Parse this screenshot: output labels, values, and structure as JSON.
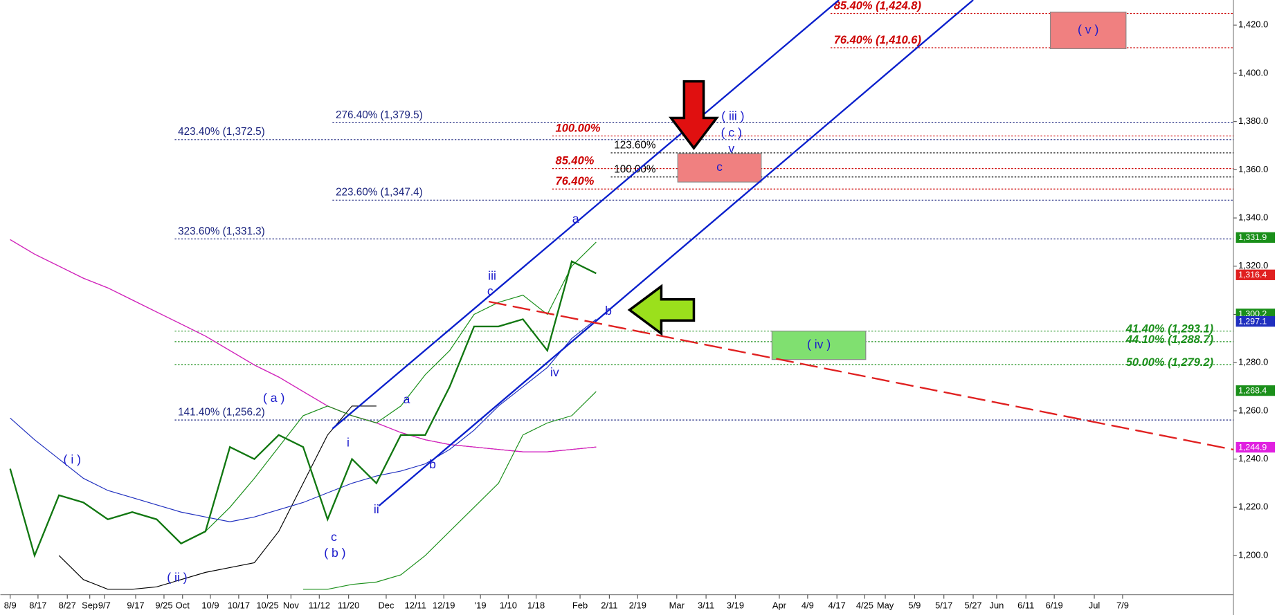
{
  "chart_data": {
    "type": "line",
    "xlim": [
      -2,
      250.5
    ],
    "ylim": [
      1184.1,
      1430.4
    ],
    "xticks": [
      {
        "value": 0,
        "label": "8/9"
      },
      {
        "value": 5.7,
        "label": "8/17"
      },
      {
        "value": 11.7,
        "label": "8/27"
      },
      {
        "value": 16.3,
        "label": "Sep"
      },
      {
        "value": 19.3,
        "label": "9/7"
      },
      {
        "value": 25.7,
        "label": "9/17"
      },
      {
        "value": 31.5,
        "label": "9/25"
      },
      {
        "value": 35.3,
        "label": "Oct"
      },
      {
        "value": 41,
        "label": "10/9"
      },
      {
        "value": 46.8,
        "label": "10/17"
      },
      {
        "value": 52.7,
        "label": "10/25"
      },
      {
        "value": 57.5,
        "label": "Nov"
      },
      {
        "value": 63.3,
        "label": "11/12"
      },
      {
        "value": 69.3,
        "label": "11/20"
      },
      {
        "value": 77,
        "label": "Dec"
      },
      {
        "value": 83,
        "label": "12/11"
      },
      {
        "value": 88.8,
        "label": "12/19"
      },
      {
        "value": 96.3,
        "label": "'19"
      },
      {
        "value": 102,
        "label": "1/10"
      },
      {
        "value": 107.7,
        "label": "1/18"
      },
      {
        "value": 116.7,
        "label": "Feb"
      },
      {
        "value": 122.7,
        "label": "2/11"
      },
      {
        "value": 128.5,
        "label": "2/19"
      },
      {
        "value": 136.5,
        "label": "Mar"
      },
      {
        "value": 142.5,
        "label": "3/11"
      },
      {
        "value": 148.5,
        "label": "3/19"
      },
      {
        "value": 157.5,
        "label": "Apr"
      },
      {
        "value": 163.3,
        "label": "4/9"
      },
      {
        "value": 169.3,
        "label": "4/17"
      },
      {
        "value": 175,
        "label": "4/25"
      },
      {
        "value": 179.2,
        "label": "May"
      },
      {
        "value": 185.2,
        "label": "5/9"
      },
      {
        "value": 191.2,
        "label": "5/17"
      },
      {
        "value": 197.2,
        "label": "5/27"
      },
      {
        "value": 202,
        "label": "Jun"
      },
      {
        "value": 208,
        "label": "6/11"
      },
      {
        "value": 213.8,
        "label": "6/19"
      },
      {
        "value": 222,
        "label": "Jul"
      },
      {
        "value": 227.8,
        "label": "7/9"
      }
    ],
    "yticks": [
      {
        "value": 1200,
        "label": "1,200.0"
      },
      {
        "value": 1220,
        "label": "1,220.0"
      },
      {
        "value": 1240,
        "label": "1,240.0"
      },
      {
        "value": 1260,
        "label": "1,260.0"
      },
      {
        "value": 1280,
        "label": "1,280.0"
      },
      {
        "value": 1300,
        "label": "1,300.0"
      },
      {
        "value": 1320,
        "label": "1,320.0"
      },
      {
        "value": 1340,
        "label": "1,340.0"
      },
      {
        "value": 1360,
        "label": "1,360.0"
      },
      {
        "value": 1380,
        "label": "1,380.0"
      },
      {
        "value": 1400,
        "label": "1,400.0"
      },
      {
        "value": 1420,
        "label": "1,420.0"
      }
    ],
    "x": [
      0,
      5,
      10,
      15,
      20,
      25,
      30,
      35,
      40,
      45,
      50,
      55,
      60,
      65,
      70,
      75,
      80,
      85,
      90,
      95,
      100,
      105,
      110,
      115,
      120
    ],
    "series": [
      {
        "color": "#c00000",
        "values": [
          1331,
          1325,
          1320,
          1315,
          1311,
          1306,
          1301,
          1296,
          1291,
          1285,
          1279,
          1274,
          1268,
          1262,
          1258,
          1255,
          1251,
          1248,
          1246,
          1245,
          1244,
          1243,
          1243,
          1244,
          1245
        ]
      },
      {
        "color": "#d020d0",
        "values": [
          1331,
          1325,
          1320,
          1315,
          1311,
          1306,
          1301,
          1296,
          1291,
          1285,
          1279,
          1274,
          1268,
          1262,
          1258,
          1255,
          1251,
          1248,
          1246,
          1245,
          1244,
          1243,
          1243,
          1244,
          1245
        ]
      },
      {
        "color": "#000000",
        "values": [
          null,
          null,
          1200,
          1190,
          1186,
          1186,
          1187,
          1190,
          1193,
          1195,
          1197,
          1210,
          1230,
          1250,
          1262,
          1262,
          null,
          null,
          null,
          null,
          null,
          null,
          null,
          null,
          null
        ]
      },
      {
        "color": "#1a8f1a",
        "values": [
          null,
          null,
          null,
          null,
          null,
          null,
          null,
          null,
          null,
          null,
          null,
          null,
          1186,
          1186,
          1188,
          1189,
          1192,
          1200,
          1210,
          1220,
          1230,
          1250,
          1255,
          1258,
          1268
        ]
      },
      {
        "color": "#1a8f1a",
        "values": [
          null,
          null,
          null,
          null,
          null,
          null,
          null,
          null,
          1210,
          1220,
          1232,
          1245,
          1258,
          1262,
          1258,
          1255,
          1262,
          1275,
          1285,
          1300,
          1305,
          1308,
          1300,
          1320,
          1330
        ]
      },
      {
        "color": "#1f2fbf",
        "values": [
          1257,
          1248,
          1240,
          1232,
          1227,
          1224,
          1221,
          1218,
          1216,
          1214,
          1216,
          1219,
          1222,
          1226,
          1230,
          1233,
          1235,
          1238,
          1244,
          1252,
          1262,
          1270,
          1278,
          1290,
          1298
        ]
      },
      {
        "color": "#117711",
        "values": [
          1236,
          1200,
          1225,
          1222,
          1215,
          1218,
          1215,
          1205,
          1210,
          1245,
          1240,
          1250,
          1245,
          1215,
          1240,
          1230,
          1250,
          1250,
          1270,
          1295,
          1295,
          1298,
          1285,
          1322,
          1317
        ]
      }
    ],
    "levels": [
      {
        "label": "85.40% (1,424.8)",
        "value": 1424.8,
        "x": 168,
        "color": "#cc0000"
      },
      {
        "label": "76.40% (1,410.6)",
        "value": 1410.6,
        "x": 168,
        "color": "#cc0000"
      },
      {
        "label": "276.40% (1,379.5)",
        "value": 1379.5,
        "x": 66,
        "color": "#1a237e"
      },
      {
        "label": "423.40% (1,372.5)",
        "value": 1372.5,
        "x": 33.7,
        "color": "#1a237e"
      },
      {
        "label": "100.00%",
        "value": 1374,
        "x": 111,
        "color": "#cc0000"
      },
      {
        "label": "123.60%",
        "value": 1367,
        "x": 123,
        "color": "#000000"
      },
      {
        "label": "85.40%",
        "value": 1360.5,
        "x": 111,
        "color": "#cc0000"
      },
      {
        "label": "100.00%",
        "value": 1357,
        "x": 123,
        "color": "#000000"
      },
      {
        "label": "76.40%",
        "value": 1352,
        "x": 111,
        "color": "#cc0000"
      },
      {
        "label": "223.60% (1,347.4)",
        "value": 1347.4,
        "x": 66,
        "color": "#1a237e"
      },
      {
        "label": "323.60% (1,331.3)",
        "value": 1331.3,
        "x": 33.7,
        "color": "#1a237e"
      },
      {
        "label": "41.40% (1,293.1)",
        "value": 1293.1,
        "x": 33.7,
        "color": "#1a8f1a"
      },
      {
        "label": "44.10% (1,288.7)",
        "value": 1288.7,
        "x": 33.7,
        "color": "#1a8f1a"
      },
      {
        "label": "50.00% (1,279.2)",
        "value": 1279.2,
        "x": 33.7,
        "color": "#1a8f1a"
      },
      {
        "label": "141.40% (1,256.2)",
        "value": 1256.2,
        "x": 33.7,
        "color": "#1a237e"
      }
    ],
    "trendlines": [
      {
        "x": [
          66,
          169.7
        ],
        "y": [
          1252.6,
          1430.4
        ],
        "color": "#0a1fcc"
      },
      {
        "x": [
          75.5,
          197.2
        ],
        "y": [
          1220.6,
          1430.4
        ],
        "color": "#0a1fcc"
      },
      {
        "x": [
          98,
          250.5
        ],
        "y": [
          1305.3,
          1243.9
        ],
        "color": "#e02020",
        "dashed": true
      }
    ],
    "boxes": [
      {
        "label": "( v )",
        "x": [
          213,
          228.5
        ],
        "y": [
          1410.2,
          1425.4
        ],
        "color": "#f08080"
      },
      {
        "label": "( iv )",
        "x": [
          156,
          175.2
        ],
        "y": [
          1281.3,
          1293.1
        ],
        "color": "#80e070"
      },
      {
        "label": "c",
        "x": [
          136.7,
          153.8
        ],
        "y": [
          1354.9,
          1366.7
        ],
        "color": "#f08080"
      }
    ],
    "wave_labels": [
      {
        "text": "( i )",
        "x": 12.7,
        "y": 1239.5
      },
      {
        "text": "( ii )",
        "x": 34.2,
        "y": 1190.6
      },
      {
        "text": "( a )",
        "x": 54,
        "y": 1265.1
      },
      {
        "text": "c",
        "x": 66.3,
        "y": 1207.4
      },
      {
        "text": "( b )",
        "x": 66.5,
        "y": 1200.7
      },
      {
        "text": "i",
        "x": 69.2,
        "y": 1246.6
      },
      {
        "text": "ii",
        "x": 75,
        "y": 1218.9
      },
      {
        "text": "a",
        "x": 81.2,
        "y": 1264.4
      },
      {
        "text": "b",
        "x": 86.5,
        "y": 1237.5
      },
      {
        "text": "iii",
        "x": 98.7,
        "y": 1315.7
      },
      {
        "text": "c",
        "x": 98.3,
        "y": 1309.3
      },
      {
        "text": "iv",
        "x": 111.5,
        "y": 1275.6
      },
      {
        "text": "a",
        "x": 115.8,
        "y": 1339.4
      },
      {
        "text": "b",
        "x": 122.5,
        "y": 1301.2
      },
      {
        "text": "( iii )",
        "x": 148,
        "y": 1381.9
      },
      {
        "text": "( c )",
        "x": 147.7,
        "y": 1375.1
      },
      {
        "text": "v",
        "x": 147.7,
        "y": 1368.4
      }
    ],
    "price_tags": [
      {
        "value": 1331.9,
        "label": "1,331.9",
        "color": "#1a8f1a"
      },
      {
        "value": 1316.4,
        "label": "1,316.4",
        "color": "#e02020"
      },
      {
        "value": 1300.2,
        "label": "1,300.2",
        "color": "#1a8f1a"
      },
      {
        "value": 1297.1,
        "label": "1,297.1",
        "color": "#1f2fbf"
      },
      {
        "value": 1268.4,
        "label": "1,268.4",
        "color": "#1a8f1a"
      },
      {
        "value": 1244.9,
        "label": "1,244.9",
        "color": "#e020e0"
      }
    ]
  }
}
